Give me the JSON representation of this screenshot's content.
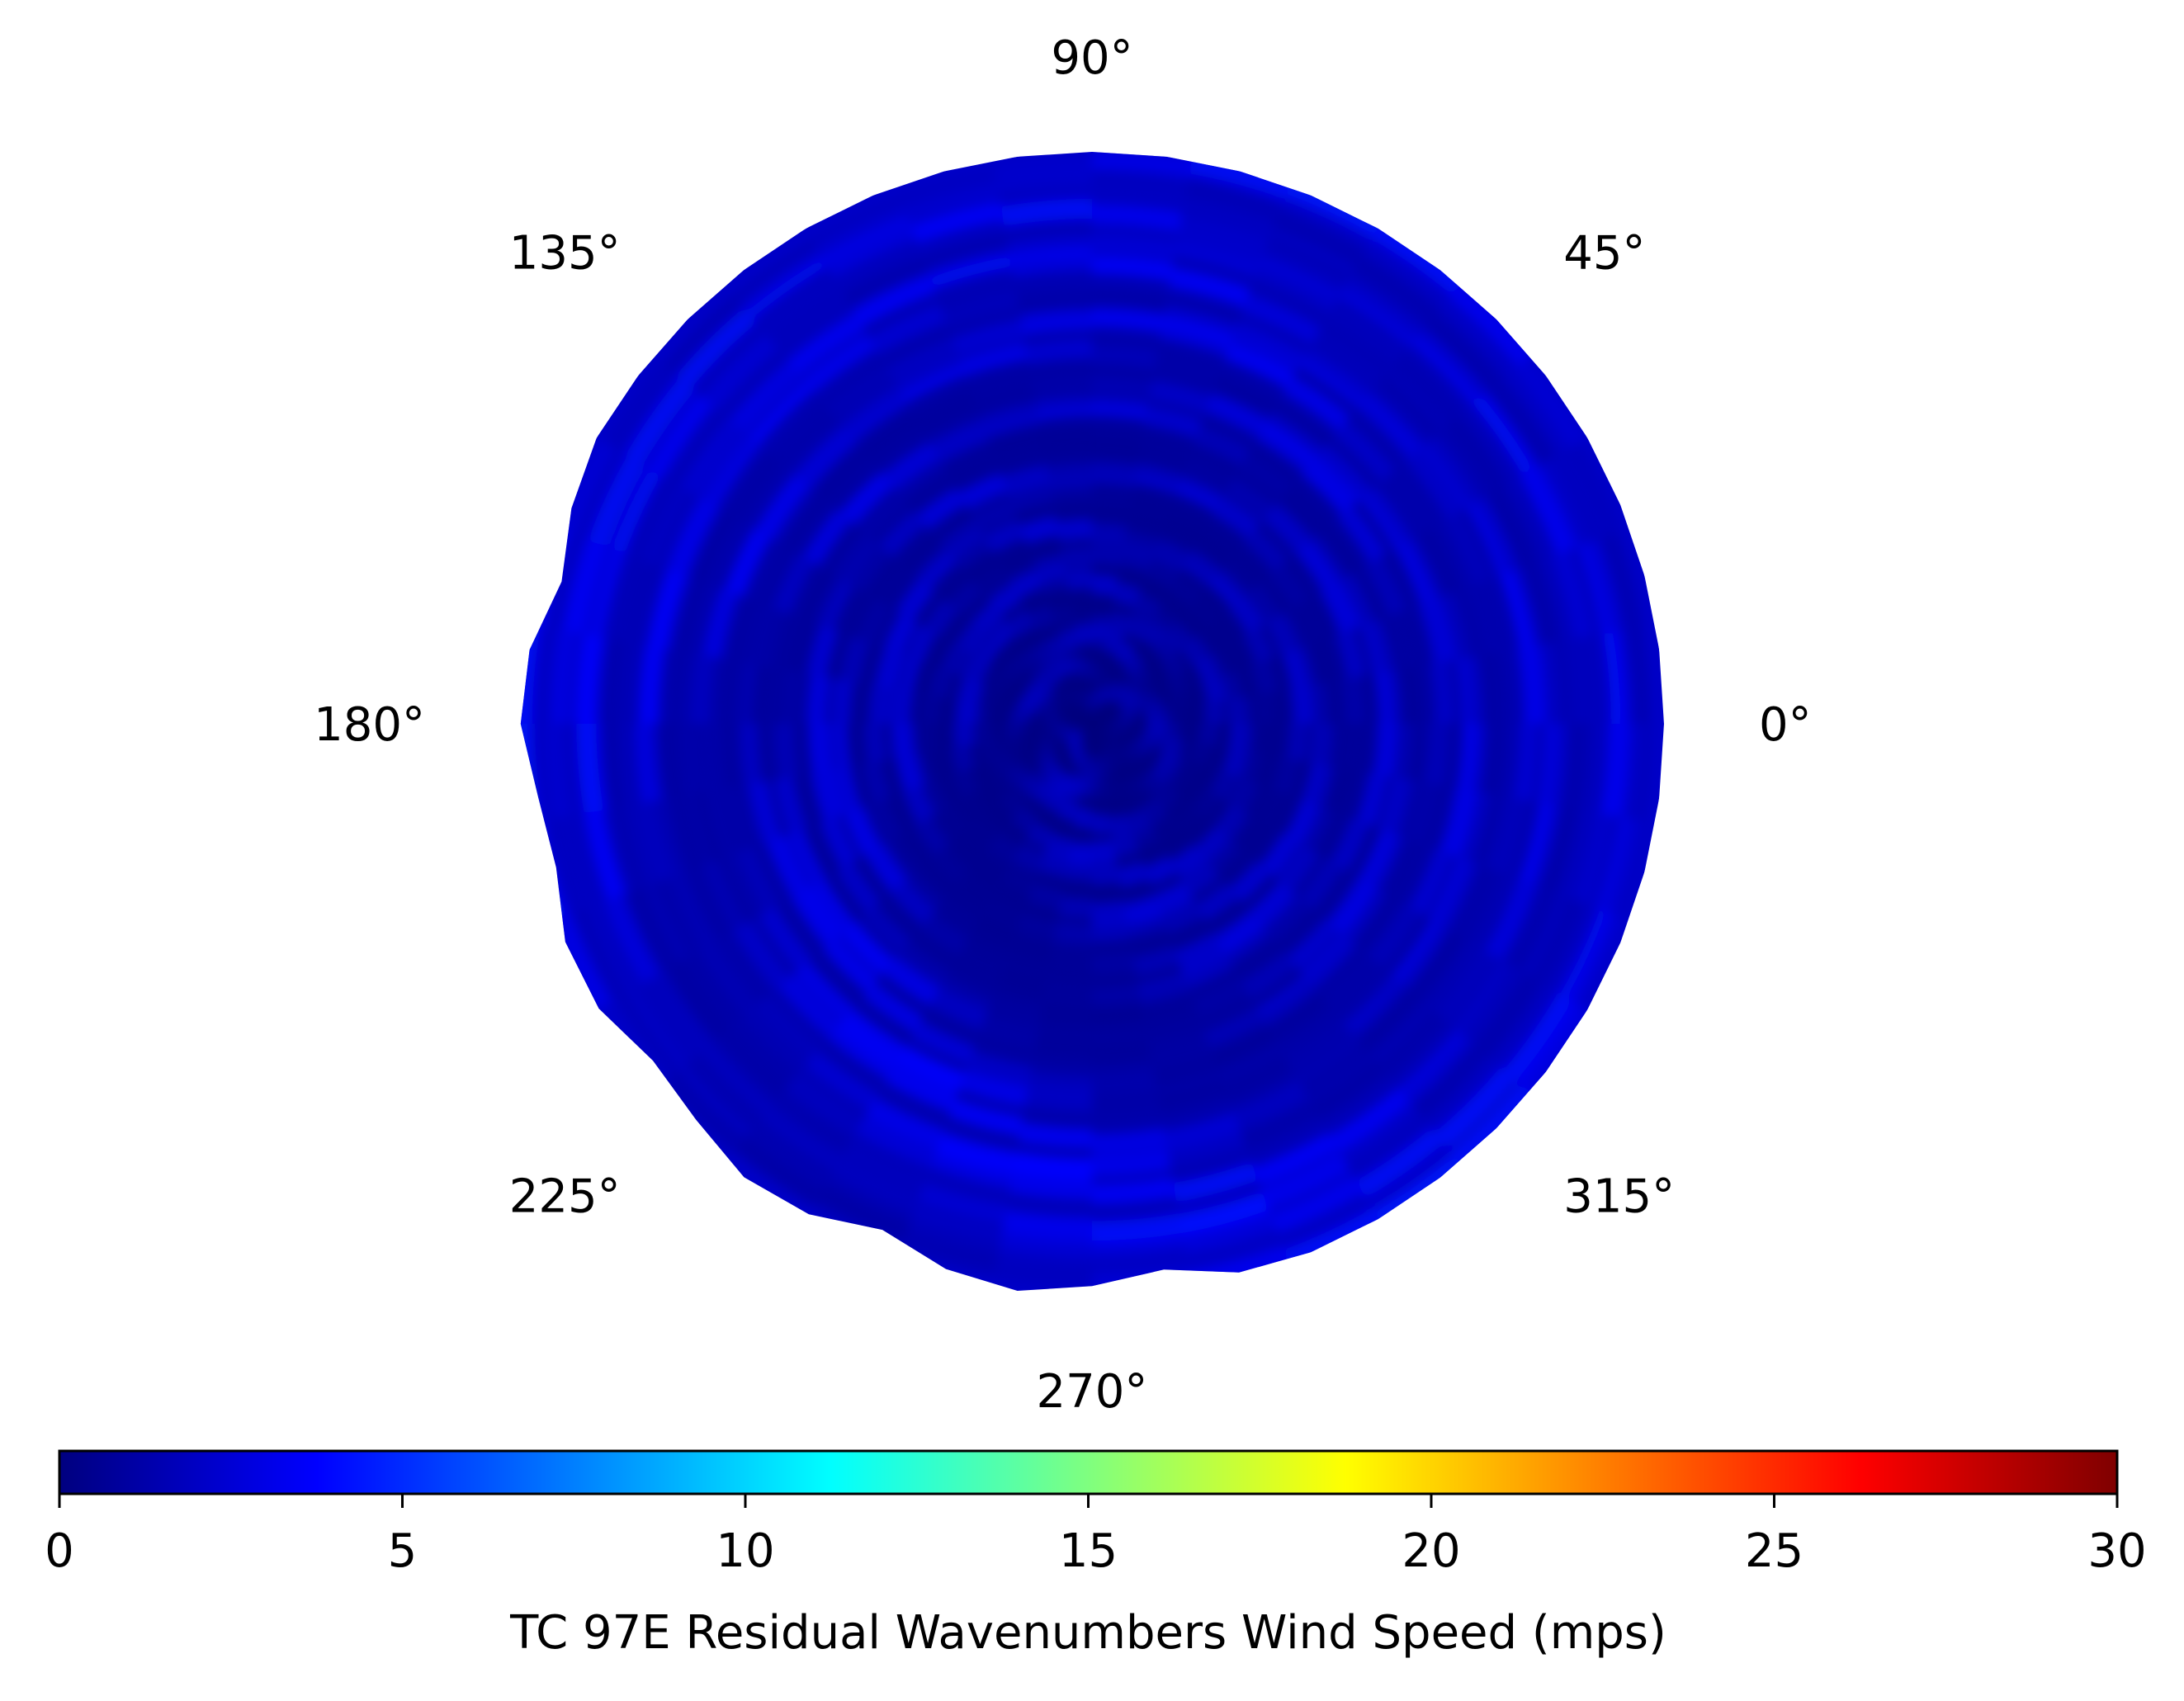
{
  "chart_data": {
    "type": "heatmap",
    "projection": "polar",
    "theta_unit": "degrees",
    "theta_ticks": [
      {
        "angle": 0,
        "label": "0°"
      },
      {
        "angle": 45,
        "label": "45°"
      },
      {
        "angle": 90,
        "label": "90°"
      },
      {
        "angle": 135,
        "label": "135°"
      },
      {
        "angle": 180,
        "label": "180°"
      },
      {
        "angle": 225,
        "label": "225°"
      },
      {
        "angle": 270,
        "label": "270°"
      },
      {
        "angle": 315,
        "label": "315°"
      }
    ],
    "grid": false,
    "colormap": "jet",
    "colormap_stops": [
      "#00007f",
      "#0000ff",
      "#007fff",
      "#00ffff",
      "#7fff7f",
      "#ffff00",
      "#ff7f00",
      "#ff0000",
      "#7f0000"
    ],
    "value_range": [
      0,
      30
    ],
    "typical_value_range": [
      0.5,
      4.5
    ],
    "colorbar": {
      "orientation": "horizontal",
      "location": "bottom",
      "label": "TC 97E Residual Wavenumbers Wind Speed (mps)",
      "ticks": [
        0,
        5,
        10,
        15,
        20,
        25,
        30
      ],
      "tick_labels": [
        "0",
        "5",
        "10",
        "15",
        "20",
        "25",
        "30"
      ]
    }
  }
}
